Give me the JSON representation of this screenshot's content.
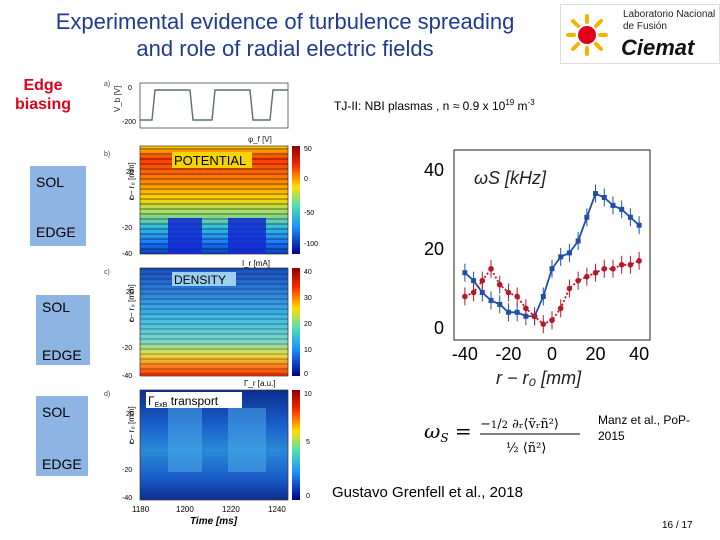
{
  "slide": {
    "title_line1": "Experimental evidence of turbulence spreading",
    "title_line2": "and role of radial electric fields",
    "edge_biasing_line1": "Edge",
    "edge_biasing_line2": "biasing",
    "tj_note": "TJ-II: NBI plasmas , n ≈ 0.9 x 10",
    "tj_exp": "19",
    "tj_unit": " m",
    "tj_unit_exp": "-3",
    "potential_label": "POTENTIAL",
    "density_label": "DENSITY",
    "flux_label": "Γ",
    "flux_sub": "ExB",
    "flux_tail": " transport",
    "sol": "SOL",
    "edge": "EDGE",
    "ref1": "Manz et al., PoP-",
    "ref2": "2015",
    "author": "Gustavo  Grenfell et al., 2018",
    "page": "16 / 17",
    "logo_line1": "Laboratorio Nacional",
    "logo_line2": "de Fusión",
    "logo_brand": "Ciemat",
    "panel_a": "a)",
    "panel_b": "b)",
    "panel_c": "c)",
    "panel_d": "d)",
    "vb_label": "V_b [V]",
    "phi_label": "φ_f [V]",
    "ir_label": "I_r [mA]",
    "gamma_label": "Γ_r [a.u.]",
    "ylabel_r": "r − r₀ [mm]",
    "xlabel_time": "Time [ms]",
    "plot_x_label": "r − r₀ [mm]",
    "plot_y_label": "ωS [kHz]"
  },
  "colorbars": {
    "potential": [
      "50",
      "0",
      "-50",
      "-100"
    ],
    "density": [
      "40",
      "30",
      "20",
      "10",
      "0"
    ],
    "flux": [
      "10",
      "5",
      "0"
    ]
  },
  "vb_ticks": [
    "0",
    "-200"
  ],
  "radial_ticks": [
    "20",
    "0",
    "-20",
    "-40"
  ],
  "time_ticks": [
    "1180",
    "1200",
    "1220",
    "1240"
  ],
  "chart_data": {
    "type": "line",
    "xlabel": "r − r₀ [mm]",
    "ylabel": "ωS [kHz]",
    "xlim": [
      -45,
      45
    ],
    "ylim": [
      -3,
      45
    ],
    "xticks": [
      "-40",
      "-20",
      "0",
      "20",
      "40"
    ],
    "yticks": [
      "0",
      "20",
      "40"
    ],
    "series": [
      {
        "name": "",
        "color": "#1f4fa8",
        "style": "solid",
        "x": [
          -40,
          -36,
          -32,
          -28,
          -24,
          -20,
          -16,
          -12,
          -8,
          -4,
          0,
          4,
          8,
          12,
          16,
          20,
          24,
          28,
          32,
          36,
          40
        ],
        "y": [
          14,
          12,
          9,
          7,
          6,
          4,
          4,
          3,
          3,
          8,
          15,
          18,
          19,
          22,
          28,
          34,
          33,
          31,
          30,
          28,
          26
        ]
      },
      {
        "name": "",
        "color": "#b5172b",
        "style": "dotted",
        "x": [
          -40,
          -36,
          -32,
          -28,
          -24,
          -20,
          -16,
          -12,
          -8,
          -4,
          0,
          4,
          8,
          12,
          16,
          20,
          24,
          28,
          32,
          36,
          40
        ],
        "y": [
          8,
          9,
          12,
          15,
          11,
          9,
          8,
          5,
          3,
          1,
          2,
          5,
          10,
          12,
          13,
          14,
          15,
          15,
          16,
          16,
          17
        ]
      }
    ]
  }
}
